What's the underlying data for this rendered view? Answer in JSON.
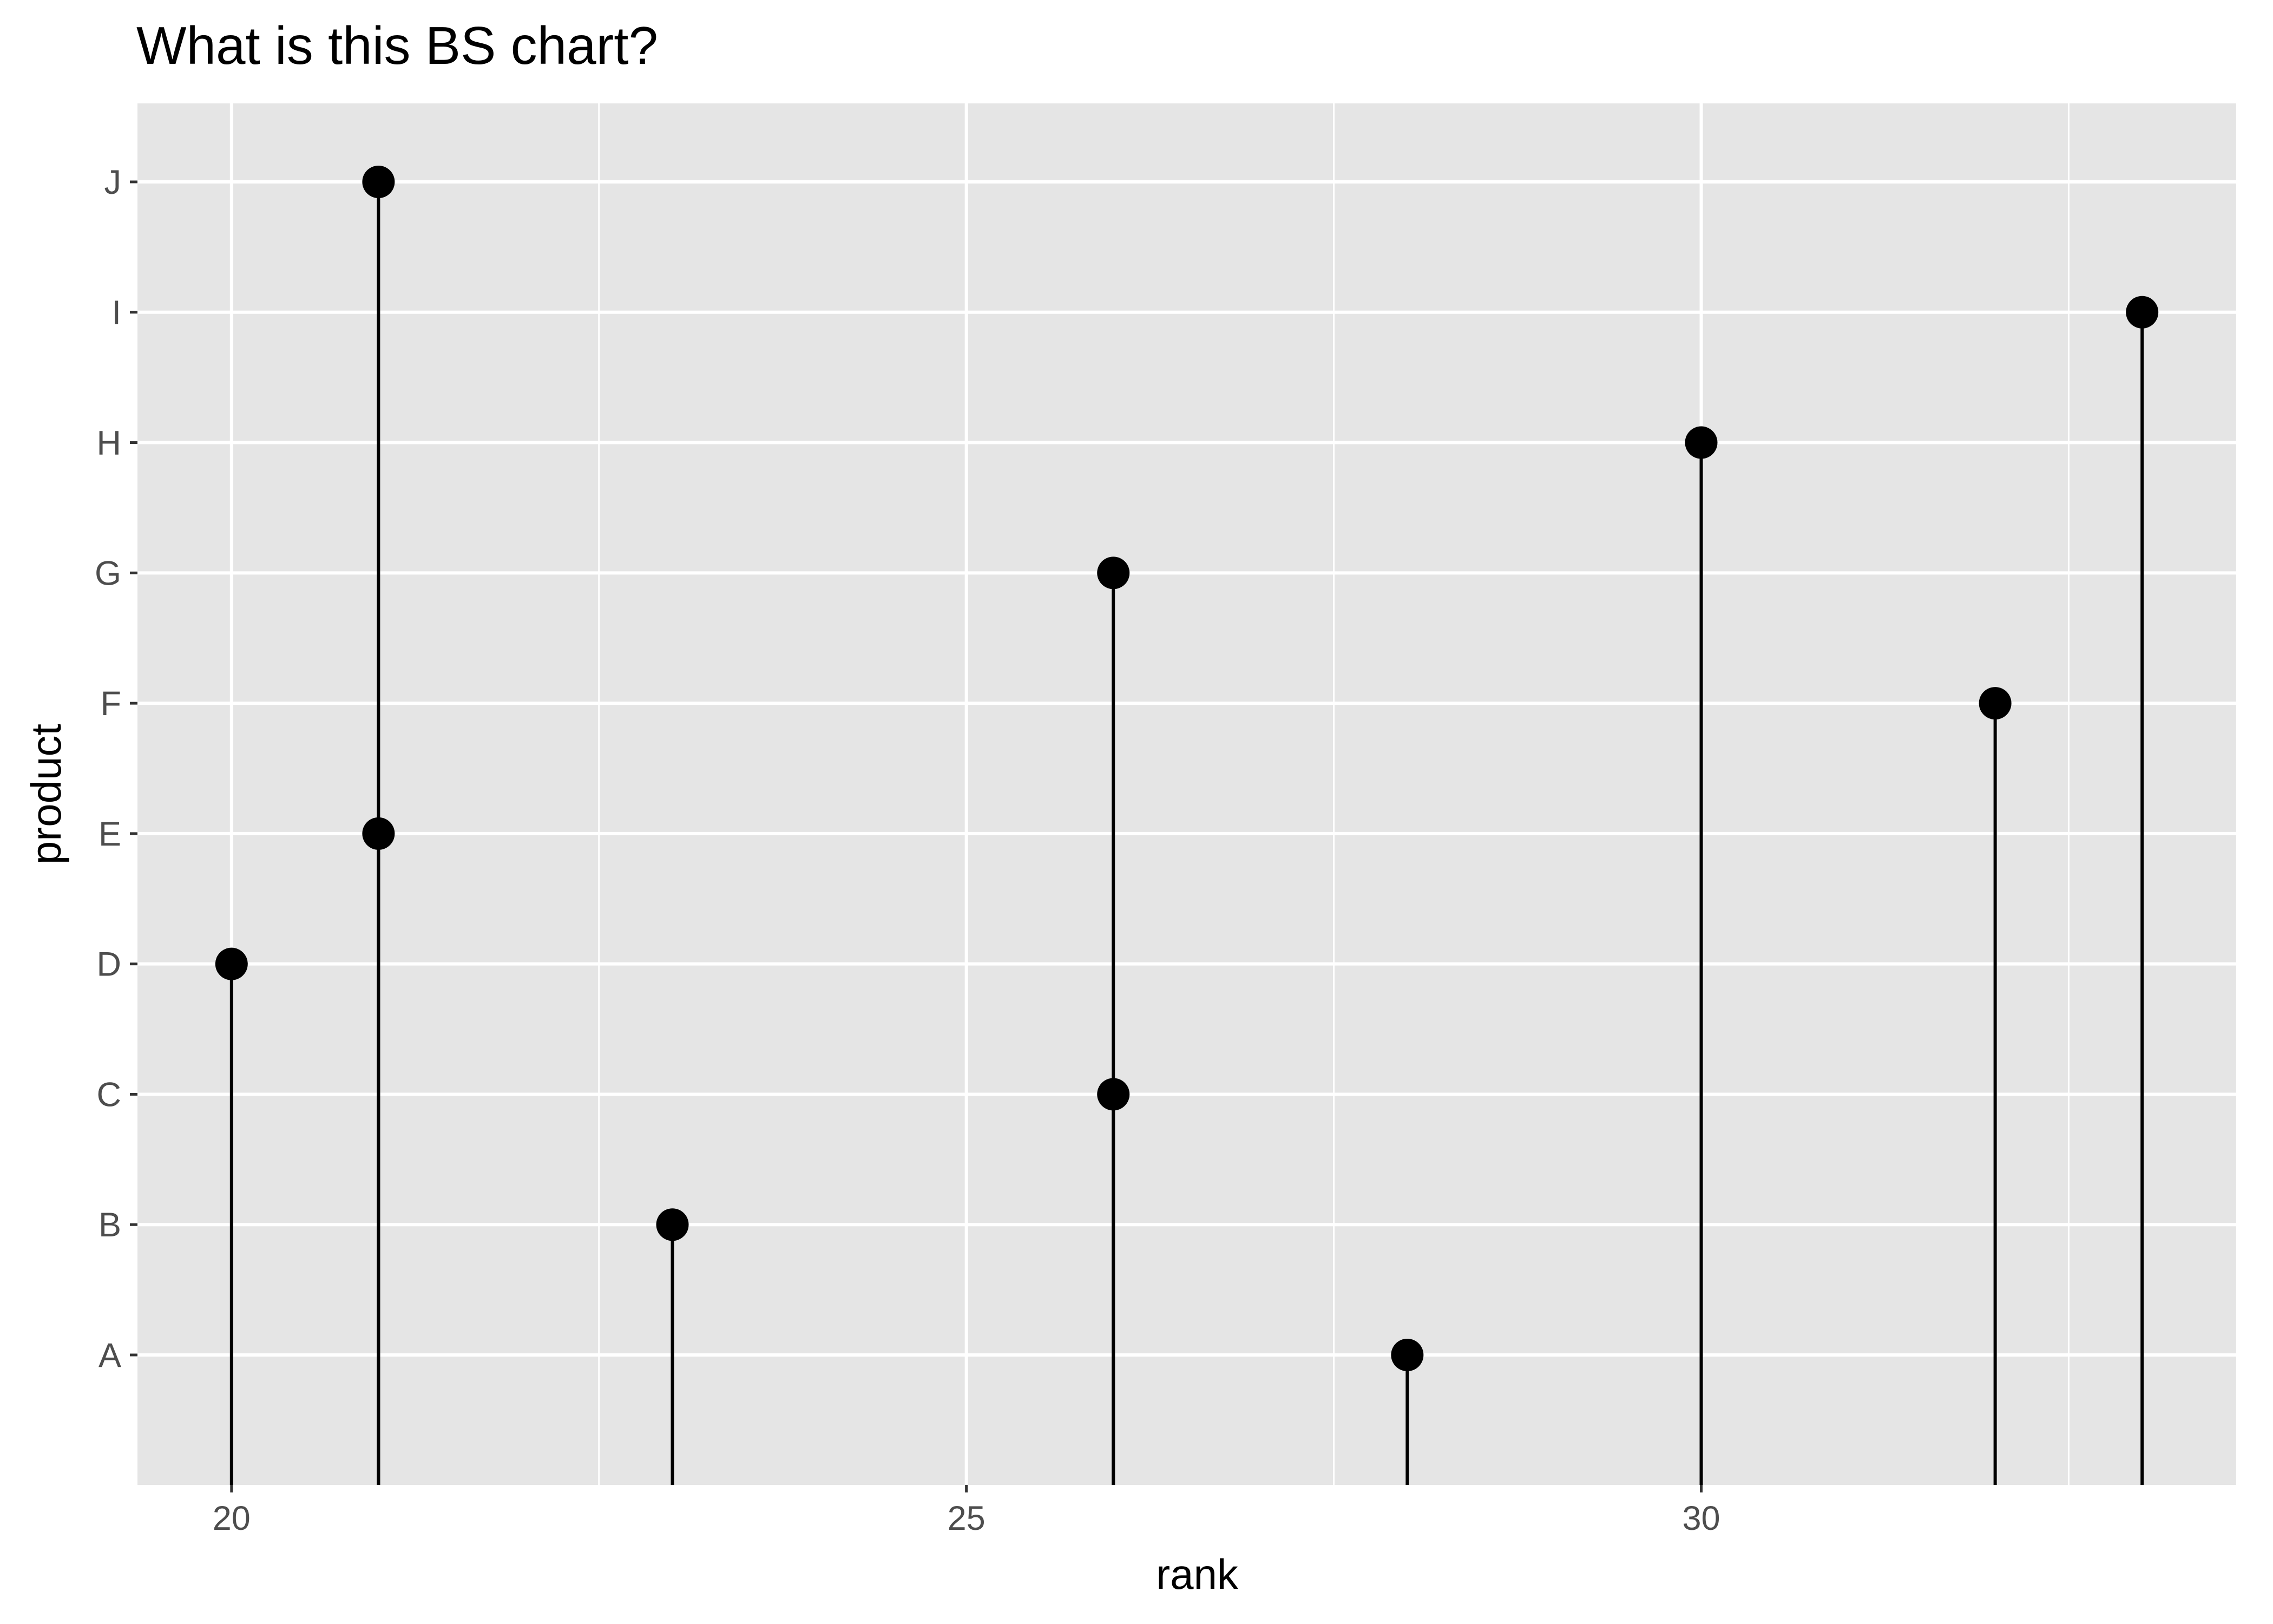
{
  "chart_data": {
    "type": "lollipop",
    "title": "What is this BS chart?",
    "xlabel": "rank",
    "ylabel": "product",
    "x_ticks": [
      20,
      25,
      30
    ],
    "xlim": [
      19.36,
      33.64
    ],
    "y_categories": [
      "A",
      "B",
      "C",
      "D",
      "E",
      "F",
      "G",
      "H",
      "I",
      "J"
    ],
    "points": [
      {
        "product": "A",
        "rank": 28
      },
      {
        "product": "B",
        "rank": 23
      },
      {
        "product": "C",
        "rank": 26
      },
      {
        "product": "D",
        "rank": 20
      },
      {
        "product": "E",
        "rank": 21
      },
      {
        "product": "F",
        "rank": 32
      },
      {
        "product": "G",
        "rank": 26
      },
      {
        "product": "H",
        "rank": 30
      },
      {
        "product": "I",
        "rank": 33
      },
      {
        "product": "J",
        "rank": 21
      }
    ],
    "grid": true,
    "colors": {
      "panel_background": "#e5e5e5",
      "grid": "#ffffff",
      "marks": "#000000"
    }
  }
}
